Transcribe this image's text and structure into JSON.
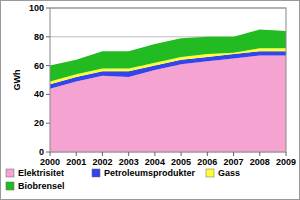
{
  "chart_data": {
    "type": "area",
    "stacked": true,
    "grid": true,
    "legend": "bottom",
    "y_label": "GWh",
    "categories": [
      "2000",
      "2001",
      "2002",
      "2003",
      "2004",
      "2005",
      "2006",
      "2007",
      "2008",
      "2009"
    ],
    "series": [
      {
        "name": "Elektrisitet",
        "color": "#f5a3d0",
        "values": [
          44,
          49,
          53,
          52,
          57,
          61,
          63,
          65,
          67,
          67
        ]
      },
      {
        "name": "Petroleumsprodukter",
        "color": "#3344ee",
        "values": [
          3,
          3,
          3,
          4,
          3,
          3,
          3,
          3,
          3,
          3
        ]
      },
      {
        "name": "Gass",
        "color": "#ffff33",
        "values": [
          2,
          2,
          2,
          2,
          2,
          2,
          2,
          1,
          2,
          2
        ]
      },
      {
        "name": "Biobrensel",
        "color": "#22bb22",
        "values": [
          11,
          10,
          12,
          12,
          13,
          13,
          12,
          11,
          13,
          12
        ]
      }
    ],
    "ylim": [
      0,
      100
    ],
    "yticks": [
      0,
      20,
      40,
      60,
      80,
      100
    ]
  }
}
